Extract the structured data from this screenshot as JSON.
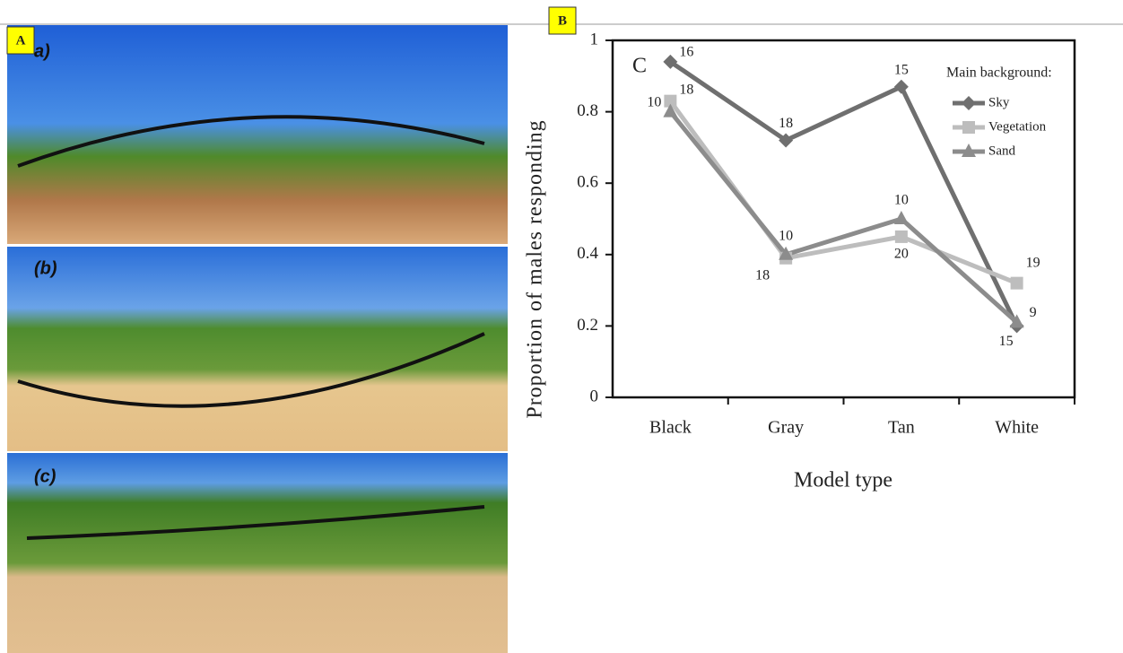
{
  "panel_labels": {
    "a": "A",
    "b": "B"
  },
  "photos": [
    {
      "label": "a)"
    },
    {
      "label": "(b)"
    },
    {
      "label": "(c)"
    }
  ],
  "chart_data": {
    "type": "line",
    "panel_letter": "C",
    "x_label": "Model type",
    "y_label": "Proportion of males responding",
    "categories": [
      "Black",
      "Gray",
      "Tan",
      "White"
    ],
    "ylim": [
      0,
      1
    ],
    "yticks": [
      0,
      0.2,
      0.4,
      0.6,
      0.8,
      1
    ],
    "legend_title": "Main background:",
    "series": [
      {
        "name": "Sky",
        "color": "#6f6f6f",
        "marker": "diamond",
        "values": [
          0.94,
          0.72,
          0.87,
          0.2
        ],
        "sample_sizes": [
          16,
          18,
          15,
          15
        ]
      },
      {
        "name": "Vegetation",
        "color": "#bdbdbd",
        "marker": "square",
        "values": [
          0.83,
          0.39,
          0.45,
          0.32
        ],
        "sample_sizes": [
          18,
          18,
          20,
          19
        ]
      },
      {
        "name": "Sand",
        "color": "#8c8c8c",
        "marker": "triangle",
        "values": [
          0.8,
          0.4,
          0.5,
          0.21
        ],
        "sample_sizes": [
          10,
          10,
          10,
          9
        ]
      }
    ]
  }
}
